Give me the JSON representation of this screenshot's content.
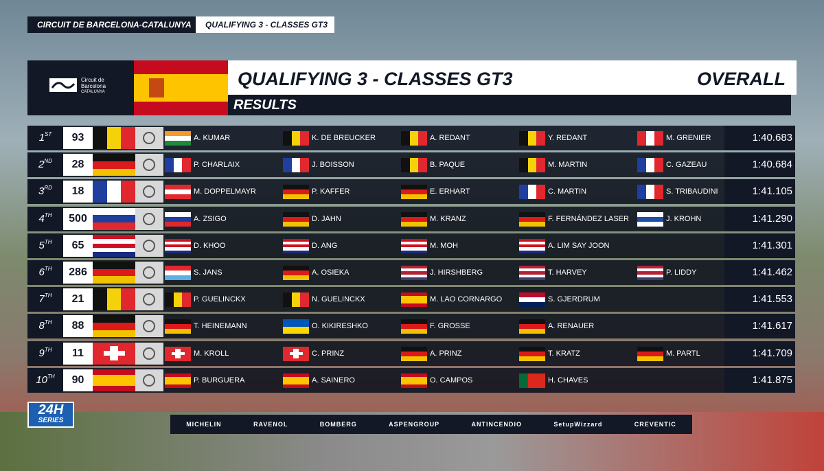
{
  "header": {
    "circuit": "CIRCUIT DE BARCELONA-CATALUNYA",
    "session": "QUALIFYING 3 - CLASSES GT3"
  },
  "logo": {
    "line1": "Circuit de",
    "line2": "Barcelona",
    "line3": "CATALUNYA"
  },
  "panel": {
    "title": "QUALIFYING 3 - CLASSES GT3",
    "scope": "OVERALL",
    "subtitle": "RESULTS"
  },
  "table": {
    "rows": [
      {
        "position": "1",
        "suffix": "ST",
        "number": "93",
        "drivers": [
          "A. KUMAR",
          "K. DE BREUCKER",
          "A. REDANT",
          "Y. REDANT",
          "M. GRENIER"
        ],
        "time": "1:40.683"
      },
      {
        "position": "2",
        "suffix": "ND",
        "number": "28",
        "drivers": [
          "P. CHARLAIX",
          "J. BOISSON",
          "B. PAQUE",
          "M. MARTIN",
          "C. GAZEAU"
        ],
        "time": "1:40.684"
      },
      {
        "position": "3",
        "suffix": "RD",
        "number": "18",
        "drivers": [
          "M. DOPPELMAYR",
          "P. KAFFER",
          "E. ERHART",
          "C. MARTIN",
          "S. TRIBAUDINI"
        ],
        "time": "1:41.105"
      },
      {
        "position": "4",
        "suffix": "TH",
        "number": "500",
        "drivers": [
          "A. ZSIGO",
          "D. JAHN",
          "M. KRANZ",
          "F. FERNÁNDEZ LASER",
          "J. KROHN"
        ],
        "time": "1:41.290"
      },
      {
        "position": "5",
        "suffix": "TH",
        "number": "65",
        "drivers": [
          "D. KHOO",
          "D. ANG",
          "M. MOH",
          "A. LIM SAY JOON"
        ],
        "time": "1:41.301"
      },
      {
        "position": "6",
        "suffix": "TH",
        "number": "286",
        "drivers": [
          "S. JANS",
          "A. OSIEKA",
          "J. HIRSHBERG",
          "T. HARVEY",
          "P. LIDDY"
        ],
        "time": "1:41.462"
      },
      {
        "position": "7",
        "suffix": "TH",
        "number": "21",
        "drivers": [
          "P. GUELINCKX",
          "N. GUELINCKX",
          "M. LAO CORNARGO",
          "S. GJERDRUM"
        ],
        "time": "1:41.553"
      },
      {
        "position": "8",
        "suffix": "TH",
        "number": "88",
        "drivers": [
          "T. HEINEMANN",
          "O. KIKIRESHKO",
          "F. GROSSE",
          "A. RENAUER"
        ],
        "time": "1:41.617"
      },
      {
        "position": "9",
        "suffix": "TH",
        "number": "11",
        "drivers": [
          "M. KROLL",
          "C. PRINZ",
          "A. PRINZ",
          "T. KRATZ",
          "M. PARTL"
        ],
        "time": "1:41.709"
      },
      {
        "position": "10",
        "suffix": "TH",
        "number": "90",
        "drivers": [
          "P. BURGUERA",
          "A. SAINERO",
          "O. CAMPOS",
          "H. CHAVES"
        ],
        "time": "1:41.875"
      }
    ]
  },
  "series_logo": {
    "top": "24H",
    "bottom": "SERIES"
  },
  "sponsors": [
    "MICHELIN",
    "RAVENOL",
    "BOMBERG",
    "ASPENGROUP",
    "ANTINCENDIO",
    "SetupWizzard",
    "CREVENTIC"
  ]
}
